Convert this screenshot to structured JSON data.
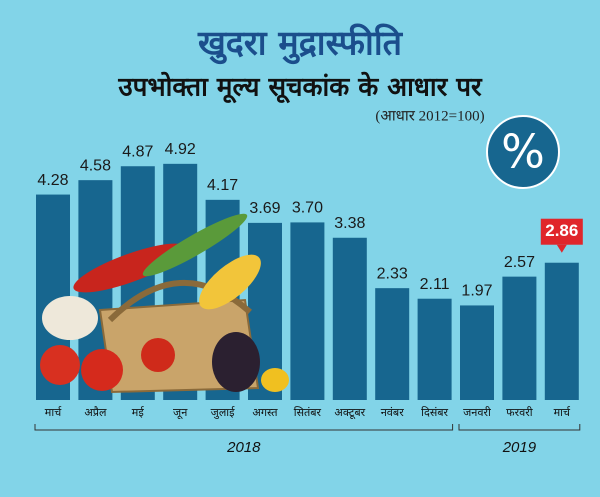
{
  "chart_data": {
    "type": "bar",
    "title": "खुदरा मुद्रास्फीति",
    "subtitle": "उपभोक्ता मूल्य सूचकांक के आधार पर",
    "note": "(आधार 2012=100)",
    "symbol": "%",
    "categories": [
      "मार्च",
      "अप्रैल",
      "मई",
      "जून",
      "जुलाई",
      "अगस्त",
      "सितंबर",
      "अक्टूबर",
      "नवंबर",
      "दिसंबर",
      "जनवरी",
      "फरवरी",
      "मार्च"
    ],
    "values": [
      4.28,
      4.58,
      4.87,
      4.92,
      4.17,
      3.69,
      3.7,
      3.38,
      2.33,
      2.11,
      1.97,
      2.57,
      2.86
    ],
    "value_labels": [
      "4.28",
      "4.58",
      "4.87",
      "4.92",
      "4.17",
      "3.69",
      "3.70",
      "3.38",
      "2.33",
      "2.11",
      "1.97",
      "2.57",
      "2.86"
    ],
    "color": "#17668f",
    "highlight_index": 12,
    "highlight_color": "#e0262b",
    "groups": [
      {
        "label": "2018",
        "count": 10
      },
      {
        "label": "2019",
        "count": 3
      }
    ]
  }
}
